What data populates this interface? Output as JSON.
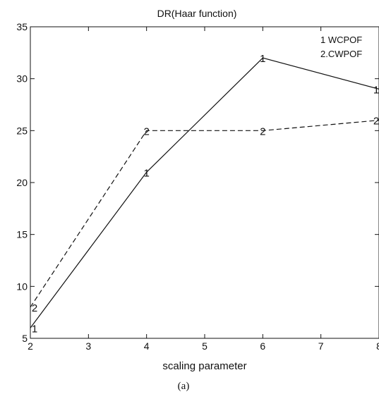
{
  "chart_data": {
    "type": "line",
    "title": "DR(Haar function)",
    "xlabel": "scaling parameter",
    "ylabel": "",
    "xlim": [
      2,
      8
    ],
    "ylim": [
      5,
      35
    ],
    "xticks": [
      2,
      3,
      4,
      5,
      6,
      7,
      8
    ],
    "yticks": [
      5,
      10,
      15,
      20,
      25,
      30,
      35
    ],
    "grid": false,
    "legend_position": "top-right",
    "legend": [
      "1 WCPOF",
      "2.CWPOF"
    ],
    "series": [
      {
        "name": "1 WCPOF",
        "marker": "1",
        "line_style": "solid",
        "x": [
          2,
          4,
          6,
          8
        ],
        "y": [
          6,
          21,
          32,
          29
        ]
      },
      {
        "name": "2.CWPOF",
        "marker": "2",
        "line_style": "dashed/dotted",
        "x": [
          2,
          4,
          6,
          8
        ],
        "y": [
          8,
          25,
          25,
          26
        ]
      }
    ]
  },
  "caption": "(a)",
  "colors": {
    "line": "#111111",
    "background": "#ffffff"
  }
}
